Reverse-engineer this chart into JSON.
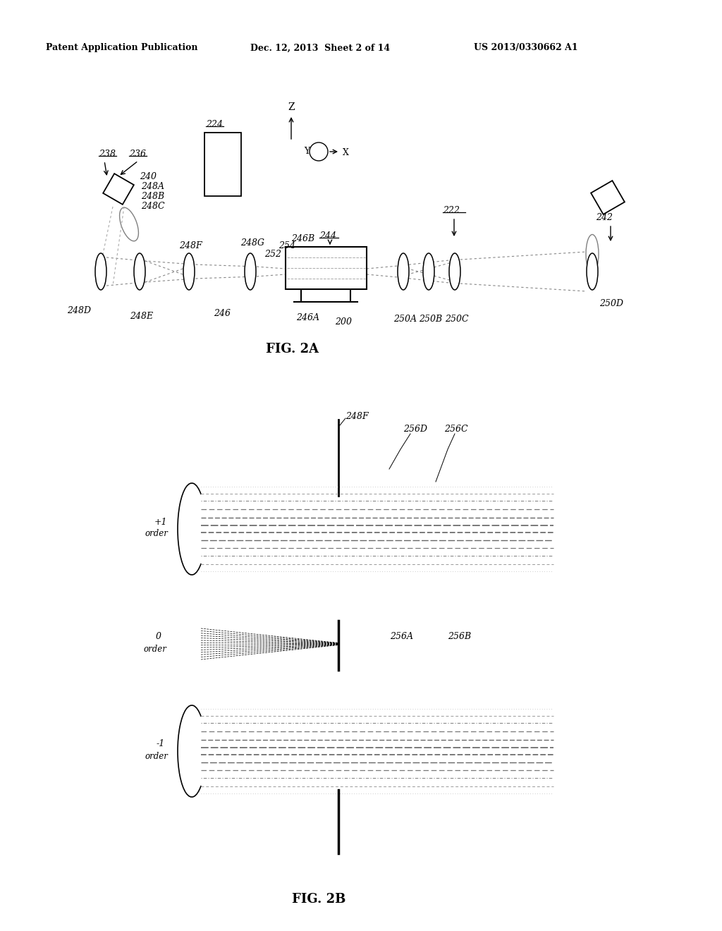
{
  "bg_color": "#ffffff",
  "header_left": "Patent Application Publication",
  "header_mid": "Dec. 12, 2013  Sheet 2 of 14",
  "header_right": "US 2013/0330662 A1",
  "fig2a_label": "FIG. 2A",
  "fig2b_label": "FIG. 2B"
}
